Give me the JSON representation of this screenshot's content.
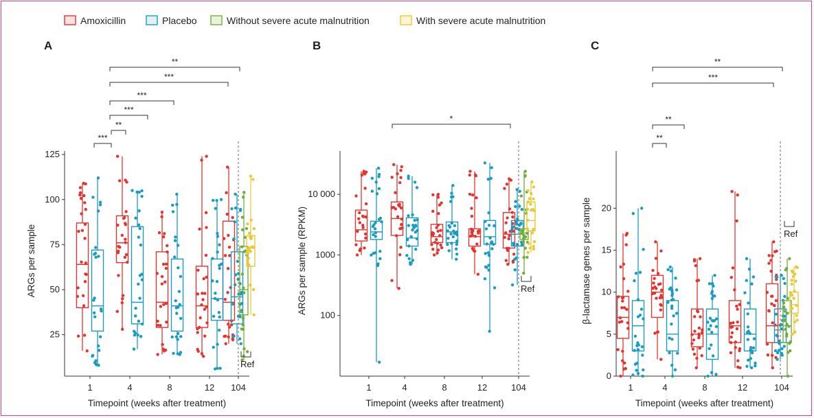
{
  "legend": [
    {
      "label": "Amoxicillin",
      "stroke": "#e3342f",
      "fill": "#fbe2e1"
    },
    {
      "label": "Placebo",
      "stroke": "#1a9cc2",
      "fill": "#e0f2f8"
    },
    {
      "label": "Without severe acute malnutrition",
      "stroke": "#6fae3c",
      "fill": "#e8f3dc"
    },
    {
      "label": "With severe acute malnutrition",
      "stroke": "#e9c93a",
      "fill": "#fdf6d5"
    }
  ],
  "colors": {
    "amoxicillin": "#e3342f",
    "placebo": "#1a9cc2",
    "without_sam": "#6fae3c",
    "with_sam": "#e9c93a",
    "frame": "#d0457f"
  },
  "xlabel": "Timepoint (weeks after treatment)",
  "ref_label": "Ref",
  "chart_data": [
    {
      "type": "box",
      "panel": "A",
      "ylabel": "ARGs per sample",
      "yscale": "linear",
      "ylim": [
        2,
        130
      ],
      "yticks": [
        25,
        50,
        75,
        100,
        125
      ],
      "categories": [
        "1",
        "4",
        "8",
        "12",
        "104"
      ],
      "series": [
        {
          "name": "Amoxicillin",
          "boxes": [
            {
              "x": "1",
              "whislo": 16,
              "q1": 40,
              "med": 64,
              "q3": 87,
              "whishi": 109
            },
            {
              "x": "4",
              "whislo": 28,
              "q1": 65,
              "med": 76,
              "q3": 91,
              "whishi": 124
            },
            {
              "x": "8",
              "whislo": 14,
              "q1": 29,
              "med": 43,
              "q3": 71,
              "whishi": 93
            },
            {
              "x": "12",
              "whislo": 13,
              "q1": 29,
              "med": 41,
              "q3": 63,
              "whishi": 124
            },
            {
              "x": "104",
              "whislo": 20,
              "q1": 33,
              "med": 43,
              "q3": 88,
              "whishi": 118
            }
          ]
        },
        {
          "name": "Placebo",
          "boxes": [
            {
              "x": "1",
              "whislo": 8,
              "q1": 27,
              "med": 41,
              "q3": 72,
              "whishi": 112
            },
            {
              "x": "4",
              "whislo": 17,
              "q1": 31,
              "med": 43,
              "q3": 85,
              "whishi": 105
            },
            {
              "x": "8",
              "whislo": 14,
              "q1": 27,
              "med": 41,
              "q3": 67,
              "whishi": 103
            },
            {
              "x": "12",
              "whislo": 6,
              "q1": 33,
              "med": 45,
              "q3": 67,
              "whishi": 100
            },
            {
              "x": "104",
              "whislo": 20,
              "q1": 31,
              "med": 46,
              "q3": 71,
              "whishi": 103
            }
          ]
        },
        {
          "name": "Without severe acute malnutrition",
          "boxes": [
            {
              "x": "104",
              "whislo": 11,
              "q1": 36,
              "med": 50,
              "q3": 74,
              "whishi": 104
            }
          ]
        },
        {
          "name": "With severe acute malnutrition",
          "boxes": [
            {
              "x": "104",
              "whislo": 36,
              "q1": 63,
              "med": 73,
              "q3": 80,
              "whishi": 113
            }
          ]
        }
      ],
      "significance": [
        {
          "label": "***",
          "from": "1",
          "to": "4"
        },
        {
          "label": "**",
          "from": "4",
          "to": "4"
        },
        {
          "label": "***",
          "from": "4",
          "to": "8"
        },
        {
          "label": "***",
          "from": "4",
          "to": "8"
        },
        {
          "label": "***",
          "from": "4",
          "to": "104"
        },
        {
          "label": "**",
          "from": "4",
          "to": "104"
        }
      ]
    },
    {
      "type": "box",
      "panel": "B",
      "ylabel": "ARGs per sample (RPKM)",
      "yscale": "log",
      "ylim": [
        10,
        40000
      ],
      "yticks": [
        100,
        1000,
        10000
      ],
      "ytick_labels": [
        "100",
        "1000",
        "10 000"
      ],
      "categories": [
        "1",
        "4",
        "8",
        "12",
        "104"
      ],
      "series": [
        {
          "name": "Amoxicillin",
          "boxes": [
            {
              "x": "1",
              "whislo": 1000,
              "q1": 1700,
              "med": 2600,
              "q3": 5500,
              "whishi": 24000
            },
            {
              "x": "4",
              "whislo": 280,
              "q1": 2100,
              "med": 4000,
              "q3": 7500,
              "whishi": 31000
            },
            {
              "x": "8",
              "whislo": 1000,
              "q1": 1600,
              "med": 2000,
              "q3": 3200,
              "whishi": 10000
            },
            {
              "x": "12",
              "whislo": 480,
              "q1": 1400,
              "med": 2000,
              "q3": 2700,
              "whishi": 24000
            },
            {
              "x": "104",
              "whislo": 700,
              "q1": 1300,
              "med": 2200,
              "q3": 5000,
              "whishi": 18000
            }
          ]
        },
        {
          "name": "Placebo",
          "boxes": [
            {
              "x": "1",
              "whislo": 17,
              "q1": 1800,
              "med": 2400,
              "q3": 3600,
              "whishi": 27000
            },
            {
              "x": "4",
              "whislo": 700,
              "q1": 1400,
              "med": 1900,
              "q3": 4100,
              "whishi": 20000
            },
            {
              "x": "8",
              "whislo": 850,
              "q1": 1600,
              "med": 2400,
              "q3": 3500,
              "whishi": 14000
            },
            {
              "x": "12",
              "whislo": 55,
              "q1": 1500,
              "med": 2000,
              "q3": 3700,
              "whishi": 33000
            },
            {
              "x": "104",
              "whislo": 320,
              "q1": 1400,
              "med": 2200,
              "q3": 3700,
              "whishi": 12000
            }
          ]
        },
        {
          "name": "Without severe acute malnutrition",
          "boxes": [
            {
              "x": "104",
              "whislo": 500,
              "q1": 1800,
              "med": 2300,
              "q3": 2700,
              "whishi": 24000
            }
          ]
        },
        {
          "name": "With severe acute malnutrition",
          "boxes": [
            {
              "x": "104",
              "whislo": 1100,
              "q1": 2500,
              "med": 3700,
              "q3": 7500,
              "whishi": 16000
            }
          ]
        }
      ],
      "significance": [
        {
          "label": "*",
          "from": "4",
          "to": "104"
        }
      ]
    },
    {
      "type": "box",
      "panel": "C",
      "ylabel": "β-lactamase genes per sample",
      "yscale": "linear",
      "ylim": [
        0,
        26
      ],
      "yticks": [
        0,
        5,
        10,
        15,
        20
      ],
      "categories": [
        "1",
        "4",
        "8",
        "12",
        "104"
      ],
      "series": [
        {
          "name": "Amoxicillin",
          "boxes": [
            {
              "x": "1",
              "whislo": 0,
              "q1": 4.5,
              "med": 7,
              "q3": 9.5,
              "whishi": 17
            },
            {
              "x": "4",
              "whislo": 2,
              "q1": 7,
              "med": 10,
              "q3": 12,
              "whishi": 16
            },
            {
              "x": "8",
              "whislo": 1,
              "q1": 3.5,
              "med": 5,
              "q3": 8,
              "whishi": 14
            },
            {
              "x": "12",
              "whislo": 1,
              "q1": 4,
              "med": 6,
              "q3": 9,
              "whishi": 22
            },
            {
              "x": "104",
              "whislo": 1,
              "q1": 4,
              "med": 6,
              "q3": 11,
              "whishi": 16
            }
          ]
        },
        {
          "name": "Placebo",
          "boxes": [
            {
              "x": "1",
              "whislo": 0,
              "q1": 3,
              "med": 6,
              "q3": 9,
              "whishi": 20
            },
            {
              "x": "4",
              "whislo": 0,
              "q1": 3,
              "med": 5,
              "q3": 9,
              "whishi": 13
            },
            {
              "x": "8",
              "whislo": 0,
              "q1": 2,
              "med": 5,
              "q3": 8,
              "whishi": 12
            },
            {
              "x": "12",
              "whislo": 1,
              "q1": 3,
              "med": 5,
              "q3": 8,
              "whishi": 14
            },
            {
              "x": "104",
              "whislo": 2,
              "q1": 4,
              "med": 5.5,
              "q3": 8,
              "whishi": 12
            }
          ]
        },
        {
          "name": "Without severe acute malnutrition",
          "boxes": [
            {
              "x": "104",
              "whislo": 0,
              "q1": 4,
              "med": 6,
              "q3": 9,
              "whishi": 14
            }
          ]
        },
        {
          "name": "With severe acute malnutrition",
          "boxes": [
            {
              "x": "104",
              "whislo": 5,
              "q1": 7.5,
              "med": 8.5,
              "q3": 10,
              "whishi": 13
            }
          ]
        }
      ],
      "significance": [
        {
          "label": "**",
          "from": "4",
          "to": "4"
        },
        {
          "label": "**",
          "from": "4",
          "to": "8"
        },
        {
          "label": "***",
          "from": "4",
          "to": "104"
        },
        {
          "label": "**",
          "from": "4",
          "to": "104"
        }
      ]
    }
  ]
}
